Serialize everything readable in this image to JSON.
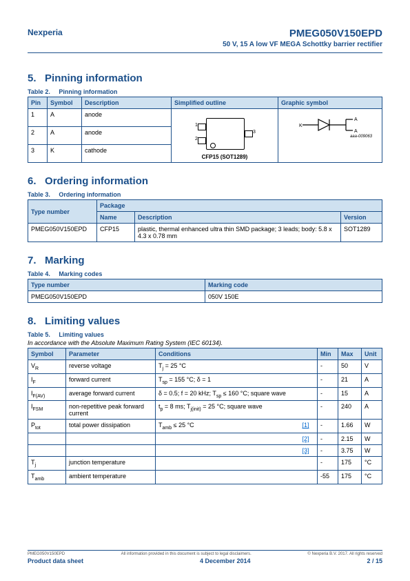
{
  "header": {
    "company": "Nexperia",
    "partno": "PMEG050V150EPD",
    "subtitle": "50 V, 15 A low VF MEGA Schottky barrier rectifier"
  },
  "s5": {
    "num": "5.",
    "title": "Pinning information",
    "caption": "Table 2.",
    "caption_txt": "Pinning information",
    "pin_h": "Pin",
    "sym_h": "Symbol",
    "desc_h": "Description",
    "outline_h": "Simplified outline",
    "graphic_h": "Graphic symbol",
    "rows": [
      {
        "pin": "1",
        "sym": "A",
        "desc": "anode"
      },
      {
        "pin": "2",
        "sym": "A",
        "desc": "anode"
      },
      {
        "pin": "3",
        "sym": "K",
        "desc": "cathode"
      }
    ],
    "pkg_label": "CFP15 (SOT1289)",
    "sym_ref": "aaa-009063"
  },
  "s6": {
    "num": "6.",
    "title": "Ordering information",
    "caption": "Table 3.",
    "caption_txt": "Ordering information",
    "type_h": "Type number",
    "pkg_h": "Package",
    "name_h": "Name",
    "desc_h": "Description",
    "ver_h": "Version",
    "type": "PMEG050V150EPD",
    "name": "CFP15",
    "desc": "plastic, thermal enhanced ultra thin SMD package; 3 leads; body: 5.8 x 4.3 x 0.78 mm",
    "ver": "SOT1289"
  },
  "s7": {
    "num": "7.",
    "title": "Marking",
    "caption": "Table 4.",
    "caption_txt": "Marking codes",
    "type_h": "Type number",
    "mark_h": "Marking code",
    "type": "PMEG050V150EPD",
    "mark": "050V 150E"
  },
  "s8": {
    "num": "8.",
    "title": "Limiting values",
    "caption": "Table 5.",
    "caption_txt": "Limiting values",
    "subcap": "In accordance with the Absolute Maximum Rating System (IEC 60134).",
    "sym_h": "Symbol",
    "param_h": "Parameter",
    "cond_h": "Conditions",
    "min_h": "Min",
    "max_h": "Max",
    "unit_h": "Unit",
    "rows": [
      {
        "sym_html": "V<span class='unit-sub'>R</span>",
        "param": "reverse voltage",
        "cond_html": "T<span class='unit-sub'>j</span> = 25 °C",
        "ref": "",
        "min": "-",
        "max": "50",
        "unit": "V"
      },
      {
        "sym_html": "I<span class='unit-sub'>F</span>",
        "param": "forward current",
        "cond_html": "T<span class='unit-sub'>sp</span> = 155 °C; δ = 1",
        "ref": "",
        "min": "-",
        "max": "21",
        "unit": "A"
      },
      {
        "sym_html": "I<span class='unit-sub'>F(AV)</span>",
        "param": "average forward current",
        "cond_html": "δ = 0.5; f = 20 kHz; T<span class='unit-sub'>sp</span> ≤ 160 °C; square wave",
        "ref": "",
        "min": "-",
        "max": "15",
        "unit": "A"
      },
      {
        "sym_html": "I<span class='unit-sub'>FSM</span>",
        "param": "non-repetitive peak forward current",
        "cond_html": "t<span class='unit-sub'>p</span> = 8 ms; T<span class='unit-sub'>j(init)</span> = 25 °C; square wave",
        "ref": "",
        "min": "-",
        "max": "240",
        "unit": "A"
      },
      {
        "sym_html": "P<span class='unit-sub'>tot</span>",
        "param": "total power dissipation",
        "cond_html": "T<span class='unit-sub'>amb</span> ≤ 25 °C",
        "ref": "[1]",
        "min": "-",
        "max": "1.66",
        "unit": "W"
      },
      {
        "sym_html": "",
        "param": "",
        "cond_html": "",
        "ref": "[2]",
        "min": "-",
        "max": "2.15",
        "unit": "W"
      },
      {
        "sym_html": "",
        "param": "",
        "cond_html": "",
        "ref": "[3]",
        "min": "-",
        "max": "3.75",
        "unit": "W"
      },
      {
        "sym_html": "T<span class='unit-sub'>j</span>",
        "param": "junction temperature",
        "cond_html": "",
        "ref": "",
        "min": "-",
        "max": "175",
        "unit": "°C"
      },
      {
        "sym_html": "T<span class='unit-sub'>amb</span>",
        "param": "ambient temperature",
        "cond_html": "",
        "ref": "",
        "min": "-55",
        "max": "175",
        "unit": "°C"
      }
    ]
  },
  "footer": {
    "left1": "PMEG050V150EPD",
    "mid1": "All information provided in this document is subject to legal disclaimers.",
    "right1": "© Nexperia B.V. 2017. All rights reserved",
    "left2": "Product data sheet",
    "mid2": "4 December 2014",
    "right2": "2 / 15"
  }
}
